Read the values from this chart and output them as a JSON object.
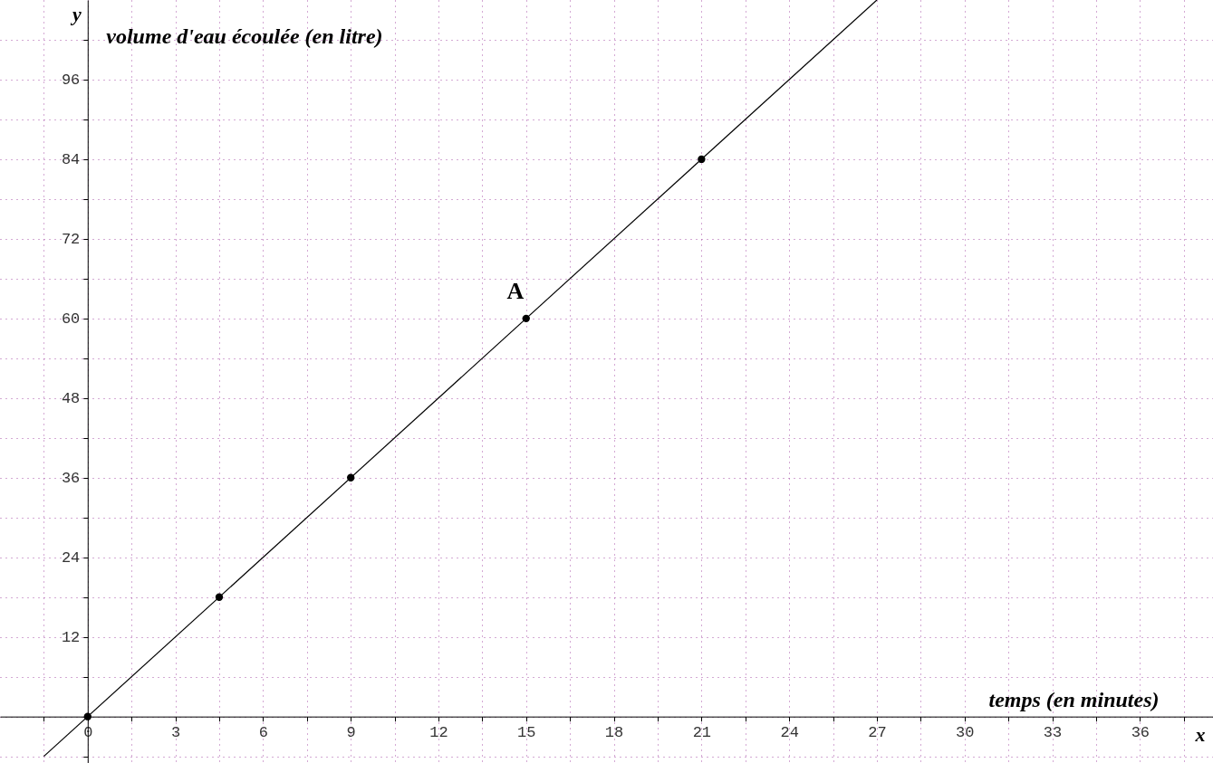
{
  "chart_data": {
    "type": "scatter",
    "xlabel": "temps (en minutes)",
    "ylabel": "volume d'eau écoulée (en litre)",
    "xlim": [
      -3,
      38.5
    ],
    "ylim": [
      -7,
      108
    ],
    "xticks": [
      {
        "value": -1.5,
        "label": null
      },
      0,
      {
        "value": 1.5,
        "label": null
      },
      3,
      {
        "value": 4.5,
        "label": null
      },
      6,
      {
        "value": 7.5,
        "label": null
      },
      9,
      {
        "value": 10.5,
        "label": null
      },
      12,
      {
        "value": 13.5,
        "label": null
      },
      15,
      {
        "value": 16.5,
        "label": null
      },
      18,
      {
        "value": 19.5,
        "label": null
      },
      21,
      {
        "value": 22.5,
        "label": null
      },
      24,
      {
        "value": 25.5,
        "label": null
      },
      27,
      {
        "value": 28.5,
        "label": null
      },
      30,
      {
        "value": 31.5,
        "label": null
      },
      33,
      {
        "value": 34.5,
        "label": null
      },
      36,
      {
        "value": 37.5,
        "label": null
      }
    ],
    "yticks": [
      {
        "value": -6,
        "label": null
      },
      {
        "value": 0,
        "label": null
      },
      {
        "value": 6,
        "label": null
      },
      12,
      {
        "value": 18,
        "label": null
      },
      24,
      {
        "value": 30,
        "label": null
      },
      36,
      {
        "value": 42,
        "label": null
      },
      48,
      {
        "value": 54,
        "label": null
      },
      60,
      {
        "value": 66,
        "label": null
      },
      72,
      {
        "value": 78,
        "label": null
      },
      84,
      {
        "value": 90,
        "label": null
      },
      96,
      {
        "value": 102,
        "label": null
      }
    ],
    "grid": true,
    "series": [
      {
        "type": "line",
        "color": "#000000",
        "marker": "none",
        "x": [
          -1.5,
          27
        ],
        "values": [
          -6,
          108
        ]
      },
      {
        "type": "scatter",
        "color": "#000000",
        "marker": "circle",
        "x": [
          0,
          4.5,
          9,
          15,
          21
        ],
        "values": [
          0,
          18,
          36,
          60,
          84
        ]
      }
    ],
    "annotations": [
      "y",
      "x",
      {
        "text": "A",
        "x": 15,
        "y": 60
      }
    ]
  }
}
